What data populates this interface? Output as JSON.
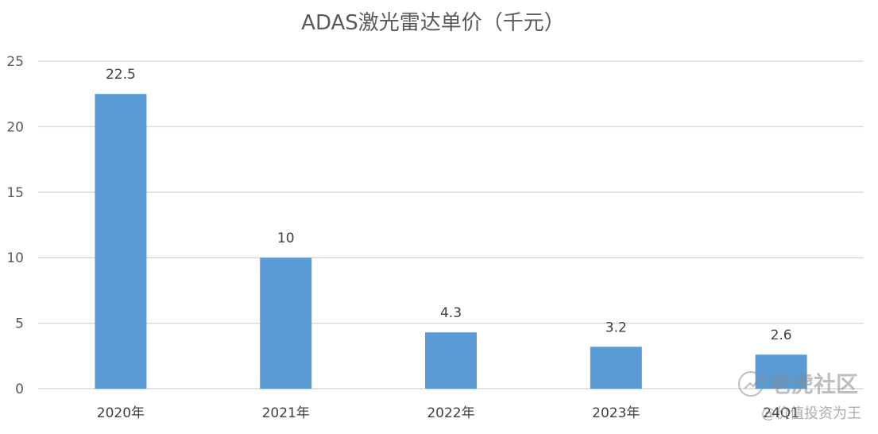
{
  "chart_data": {
    "type": "bar",
    "title": "ADAS激光雷达单价（千元）",
    "categories": [
      "2020年",
      "2021年",
      "2022年",
      "2023年",
      "24Q1"
    ],
    "values": [
      22.5,
      10,
      4.3,
      3.2,
      2.6
    ],
    "data_labels": [
      "22.5",
      "10",
      "4.3",
      "3.2",
      "2.6"
    ],
    "ylim": [
      0,
      25
    ],
    "yticks": [
      0,
      5,
      10,
      15,
      20,
      25
    ],
    "ytick_labels": [
      "0",
      "5",
      "10",
      "15",
      "20",
      "25"
    ],
    "xlabel": "",
    "ylabel": "",
    "grid": true,
    "legend": "none",
    "bar_color": "#5b9bd5",
    "grid_color": "#d9d9d9"
  },
  "watermark": {
    "brand": "老虎社区",
    "handle": "@价值投资为王"
  }
}
